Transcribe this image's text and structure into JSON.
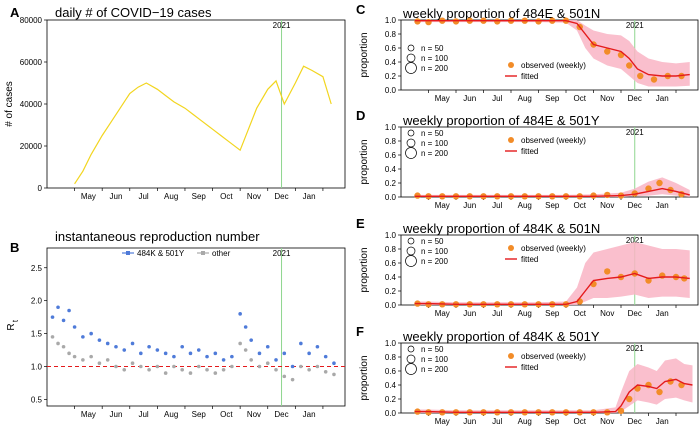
{
  "chart_data": {
    "type": "multi-panel",
    "months": [
      "May",
      "Jun",
      "Jul",
      "Aug",
      "Sep",
      "Oct",
      "Nov",
      "Dec",
      "Jan"
    ],
    "year_marker": "2021",
    "panels": [
      {
        "label": "A",
        "type": "line",
        "title": "daily # of COVID−19 cases",
        "ylabel": "# of cases",
        "ylim": [
          0,
          80000
        ],
        "yticks": [
          "0",
          "20000",
          "40000",
          "60000",
          "80000"
        ],
        "series": [
          {
            "name": "daily cases",
            "color": "#f2d51f",
            "x": [
              0,
              0.3,
              0.6,
              1,
              1.3,
              1.6,
              2,
              2.3,
              2.6,
              3,
              3.3,
              3.6,
              4,
              4.3,
              4.6,
              5,
              5.3,
              5.6,
              6,
              6.3,
              6.6,
              7,
              7.3,
              7.6,
              8,
              8.3,
              8.6,
              9,
              9.3
            ],
            "y": [
              2000,
              8000,
              16000,
              25000,
              31000,
              37000,
              45000,
              48000,
              50000,
              47000,
              44000,
              41000,
              38000,
              35000,
              32000,
              28000,
              25000,
              22000,
              18000,
              28000,
              38000,
              47000,
              51000,
              40000,
              50000,
              58000,
              56000,
              53000,
              40000
            ]
          }
        ]
      },
      {
        "label": "B",
        "type": "scatter",
        "title": "instantaneous reproduction number",
        "ylabel": "R",
        "ylabel_sub": "t",
        "ylim": [
          0.4,
          2.8
        ],
        "yticks": [
          "0.5",
          "1.0",
          "1.5",
          "2.0",
          "2.5"
        ],
        "reference_line": 1.0,
        "series": [
          {
            "name": "484K & 501Y",
            "color": "#4f7bd9",
            "x": [
              -0.8,
              -0.6,
              -0.4,
              -0.2,
              0,
              0.3,
              0.6,
              0.9,
              1.2,
              1.5,
              1.8,
              2.1,
              2.4,
              2.7,
              3,
              3.3,
              3.6,
              3.9,
              4.2,
              4.5,
              4.8,
              5.1,
              5.4,
              5.7,
              6,
              6.2,
              6.4,
              6.7,
              7,
              7.3,
              7.6,
              7.9,
              8.2,
              8.5,
              8.8,
              9.1,
              9.4
            ],
            "y": [
              1.75,
              1.9,
              1.7,
              1.85,
              1.6,
              1.45,
              1.5,
              1.4,
              1.35,
              1.3,
              1.25,
              1.35,
              1.2,
              1.3,
              1.25,
              1.2,
              1.15,
              1.3,
              1.2,
              1.25,
              1.15,
              1.2,
              1.1,
              1.15,
              1.8,
              1.6,
              1.4,
              1.2,
              1.3,
              1.1,
              1.2,
              1.0,
              1.35,
              1.2,
              1.3,
              1.15,
              1.05
            ]
          },
          {
            "name": "other",
            "color": "#a9a9a9",
            "x": [
              -0.8,
              -0.6,
              -0.4,
              -0.2,
              0,
              0.3,
              0.6,
              0.9,
              1.2,
              1.5,
              1.8,
              2.1,
              2.4,
              2.7,
              3,
              3.3,
              3.6,
              3.9,
              4.2,
              4.5,
              4.8,
              5.1,
              5.4,
              5.7,
              6,
              6.2,
              6.4,
              6.7,
              7,
              7.3,
              7.6,
              7.9,
              8.2,
              8.5,
              8.8,
              9.1,
              9.4
            ],
            "y": [
              1.45,
              1.35,
              1.3,
              1.2,
              1.15,
              1.1,
              1.15,
              1.05,
              1.1,
              1.0,
              0.95,
              1.05,
              1.0,
              0.95,
              1.0,
              0.9,
              1.0,
              0.95,
              0.9,
              1.0,
              0.95,
              0.9,
              0.95,
              1.0,
              1.35,
              1.25,
              1.1,
              1.0,
              1.05,
              0.95,
              0.85,
              0.8,
              1.0,
              0.95,
              1.0,
              0.92,
              0.88
            ]
          }
        ],
        "legend": [
          "484K & 501Y",
          "other"
        ]
      },
      {
        "label": "C",
        "type": "line",
        "title": "weekly proportion of 484E & 501N",
        "ylabel": "proportion",
        "ylim": [
          0,
          1
        ],
        "yticks": [
          "0.0",
          "0.2",
          "0.4",
          "0.6",
          "0.8",
          "1.0"
        ],
        "fitted": {
          "x": [
            -0.5,
            0,
            1,
            2,
            3,
            4,
            5,
            5.4,
            5.7,
            6,
            6.5,
            7,
            7.3,
            7.6,
            8,
            8.5,
            9,
            9.5
          ],
          "y": [
            0.99,
            0.99,
            0.99,
            0.99,
            0.99,
            0.99,
            0.99,
            0.95,
            0.8,
            0.65,
            0.6,
            0.55,
            0.45,
            0.3,
            0.22,
            0.2,
            0.2,
            0.22
          ]
        },
        "band_upper": [
          1,
          1,
          1,
          1,
          1,
          1,
          1,
          1,
          0.92,
          0.85,
          0.8,
          0.78,
          0.7,
          0.55,
          0.45,
          0.4,
          0.38,
          0.4
        ],
        "band_lower": [
          0.97,
          0.97,
          0.97,
          0.97,
          0.97,
          0.97,
          0.96,
          0.85,
          0.6,
          0.45,
          0.35,
          0.3,
          0.2,
          0.1,
          0.05,
          0.05,
          0.05,
          0.06
        ],
        "observed": {
          "x": [
            -0.4,
            0,
            0.5,
            1,
            1.5,
            2,
            2.5,
            3,
            3.5,
            4,
            4.5,
            5,
            5.5,
            6,
            6.5,
            7,
            7.3,
            7.7,
            8.2,
            8.7,
            9.2
          ],
          "y": [
            0.98,
            0.97,
            0.99,
            0.98,
            0.99,
            0.99,
            0.98,
            0.99,
            0.99,
            0.98,
            0.99,
            0.99,
            0.9,
            0.65,
            0.55,
            0.5,
            0.35,
            0.2,
            0.15,
            0.2,
            0.2
          ]
        }
      },
      {
        "label": "D",
        "type": "line",
        "title": "weekly proportion of 484E & 501Y",
        "ylabel": "proportion",
        "ylim": [
          0,
          1
        ],
        "yticks": [
          "0.0",
          "0.2",
          "0.4",
          "0.6",
          "0.8",
          "1.0"
        ],
        "fitted": {
          "x": [
            -0.5,
            0,
            1,
            2,
            3,
            4,
            5,
            6,
            7,
            7.5,
            8,
            8.5,
            9,
            9.5
          ],
          "y": [
            0.01,
            0.01,
            0.01,
            0.01,
            0.01,
            0.01,
            0.01,
            0.01,
            0.02,
            0.04,
            0.08,
            0.12,
            0.08,
            0.03
          ]
        },
        "band_upper": [
          0.03,
          0.03,
          0.03,
          0.03,
          0.03,
          0.03,
          0.03,
          0.04,
          0.06,
          0.12,
          0.22,
          0.28,
          0.2,
          0.1
        ],
        "band_lower": [
          0,
          0,
          0,
          0,
          0,
          0,
          0,
          0,
          0,
          0.01,
          0.02,
          0.04,
          0.02,
          0
        ],
        "observed": {
          "x": [
            -0.4,
            0,
            0.5,
            1,
            1.5,
            2,
            2.5,
            3,
            3.5,
            4,
            4.5,
            5,
            5.5,
            6,
            6.5,
            7,
            7.5,
            8,
            8.4,
            8.8,
            9.2
          ],
          "y": [
            0.02,
            0.01,
            0.01,
            0.01,
            0.01,
            0.01,
            0.01,
            0.01,
            0.01,
            0.01,
            0.01,
            0.01,
            0.01,
            0.02,
            0.03,
            0.02,
            0.05,
            0.12,
            0.2,
            0.1,
            0.04
          ]
        }
      },
      {
        "label": "E",
        "type": "line",
        "title": "weekly proportion of 484K & 501N",
        "ylabel": "proportion",
        "ylim": [
          0,
          1
        ],
        "yticks": [
          "0.0",
          "0.2",
          "0.4",
          "0.6",
          "0.8",
          "1.0"
        ],
        "fitted": {
          "x": [
            -0.5,
            0,
            1,
            2,
            3,
            4,
            5,
            5.4,
            5.7,
            6,
            6.5,
            7,
            7.5,
            8,
            8.5,
            9,
            9.5
          ],
          "y": [
            0.02,
            0.02,
            0.01,
            0.01,
            0.01,
            0.01,
            0.01,
            0.05,
            0.2,
            0.35,
            0.38,
            0.4,
            0.45,
            0.38,
            0.4,
            0.4,
            0.38
          ]
        },
        "band_upper": [
          0.05,
          0.05,
          0.04,
          0.04,
          0.04,
          0.04,
          0.05,
          0.25,
          0.6,
          0.75,
          0.8,
          0.85,
          0.9,
          0.85,
          0.8,
          0.8,
          0.78
        ],
        "band_lower": [
          0,
          0,
          0,
          0,
          0,
          0,
          0,
          0,
          0.05,
          0.1,
          0.1,
          0.12,
          0.15,
          0.1,
          0.12,
          0.12,
          0.1
        ],
        "observed": {
          "x": [
            -0.4,
            0,
            0.5,
            1,
            1.5,
            2,
            2.5,
            3,
            3.5,
            4,
            4.5,
            5,
            5.5,
            6,
            6.5,
            7,
            7.5,
            8,
            8.5,
            9,
            9.3
          ],
          "y": [
            0.02,
            0.01,
            0.01,
            0.01,
            0.01,
            0.01,
            0.01,
            0.01,
            0.01,
            0.01,
            0.01,
            0.01,
            0.05,
            0.3,
            0.48,
            0.4,
            0.45,
            0.35,
            0.42,
            0.4,
            0.38
          ]
        }
      },
      {
        "label": "F",
        "type": "line",
        "title": "weekly proportion of 484K & 501Y",
        "ylabel": "proportion",
        "ylim": [
          0,
          1
        ],
        "yticks": [
          "0.0",
          "0.2",
          "0.4",
          "0.6",
          "0.8",
          "1.0"
        ],
        "fitted": {
          "x": [
            -0.5,
            0,
            1,
            2,
            3,
            4,
            5,
            6,
            6.8,
            7,
            7.3,
            7.6,
            8,
            8.3,
            8.6,
            9,
            9.3,
            9.6
          ],
          "y": [
            0.02,
            0.02,
            0.01,
            0.01,
            0.01,
            0.01,
            0.01,
            0.01,
            0.02,
            0.1,
            0.3,
            0.4,
            0.38,
            0.35,
            0.45,
            0.48,
            0.42,
            0.4
          ]
        },
        "band_upper": [
          0.05,
          0.05,
          0.04,
          0.04,
          0.04,
          0.04,
          0.04,
          0.04,
          0.08,
          0.3,
          0.6,
          0.7,
          0.65,
          0.6,
          0.75,
          0.78,
          0.7,
          0.68
        ],
        "band_lower": [
          0,
          0,
          0,
          0,
          0,
          0,
          0,
          0,
          0,
          0.02,
          0.1,
          0.18,
          0.15,
          0.12,
          0.2,
          0.22,
          0.18,
          0.15
        ],
        "observed": {
          "x": [
            -0.4,
            0,
            0.5,
            1,
            1.5,
            2,
            2.5,
            3,
            3.5,
            4,
            4.5,
            5,
            5.5,
            6,
            6.5,
            7,
            7.3,
            7.6,
            8,
            8.4,
            8.8,
            9.2
          ],
          "y": [
            0.02,
            0.01,
            0.01,
            0.01,
            0.01,
            0.01,
            0.01,
            0.01,
            0.01,
            0.01,
            0.01,
            0.01,
            0.01,
            0.01,
            0.01,
            0.03,
            0.2,
            0.35,
            0.4,
            0.3,
            0.45,
            0.4
          ]
        }
      }
    ],
    "size_legend": [
      "n = 50",
      "n = 100",
      "n = 200"
    ],
    "proportion_legend": [
      "observed (weekly)",
      "fitted"
    ],
    "colors": {
      "cases": "#f2d51f",
      "fit": "#e41a1c",
      "band": "#f9b4c4",
      "obs": "#f28c28",
      "year": "#8fd68f",
      "ref": "#e41a1c"
    }
  }
}
